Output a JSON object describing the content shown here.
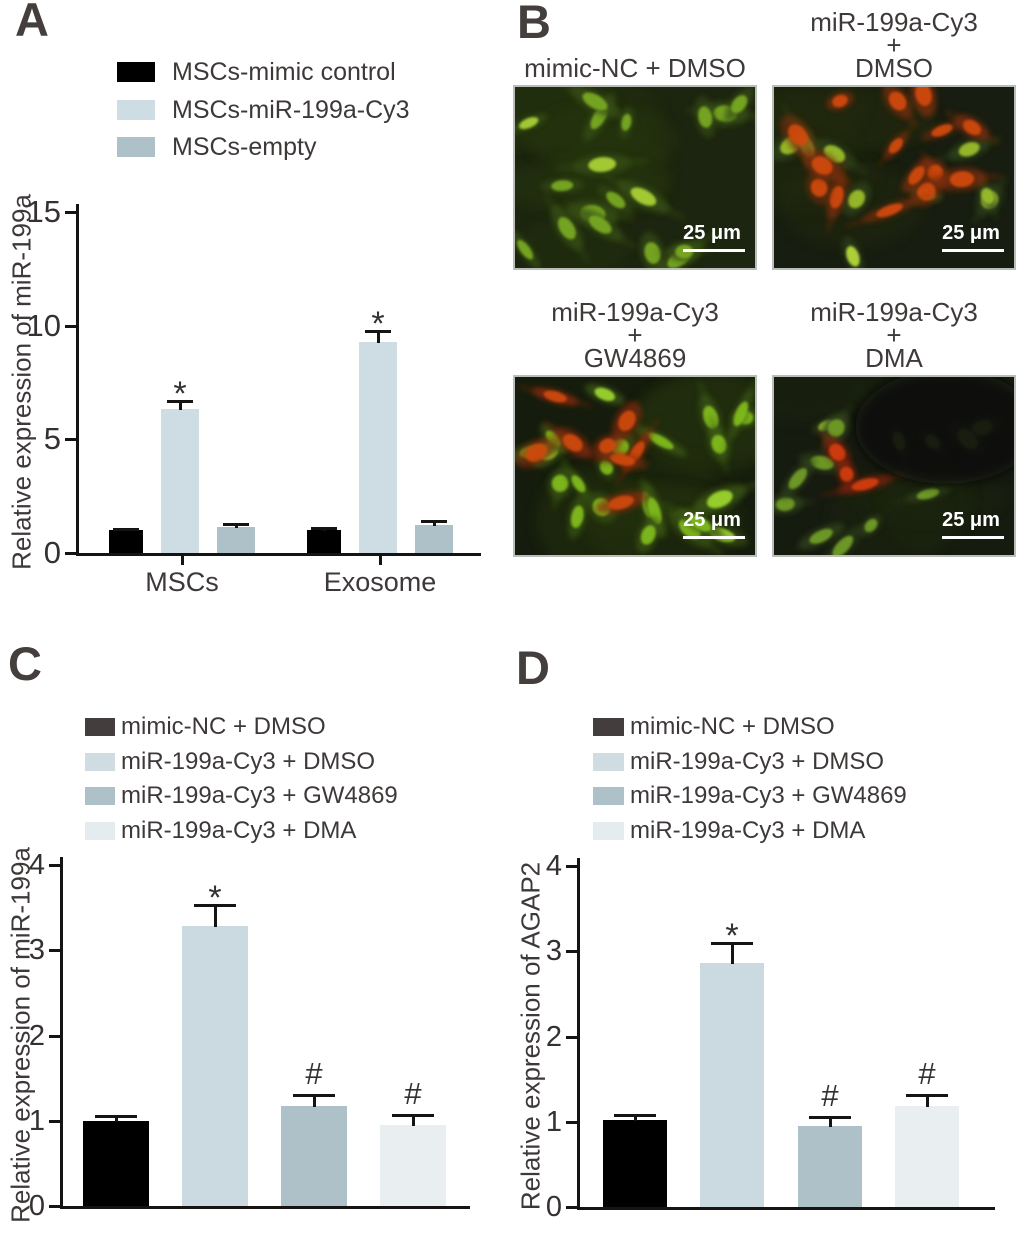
{
  "panels": {
    "A": {
      "letter": "A"
    },
    "B": {
      "letter": "B"
    },
    "C": {
      "letter": "C"
    },
    "D": {
      "letter": "D"
    }
  },
  "chart_data": [
    {
      "id": "A",
      "type": "bar",
      "title": "",
      "xlabel": "",
      "ylabel": "Relative expression of miR-199a",
      "ylim": [
        0,
        15
      ],
      "yticks": [
        0,
        5,
        10,
        15
      ],
      "grid": false,
      "legend_position": "top",
      "categories": [
        "MSCs",
        "Exosome"
      ],
      "legend": [
        {
          "label": "MSCs-mimic control",
          "color": "#000000"
        },
        {
          "label": "MSCs-miR-199a-Cy3",
          "color": "#cedce3"
        },
        {
          "label": "MSCs-empty",
          "color": "#aec1c9"
        }
      ],
      "series": [
        {
          "name": "MSCs-mimic control",
          "color": "#000000",
          "values": [
            1.0,
            1.0
          ],
          "errors": [
            0.05,
            0.08
          ],
          "marks": [
            "",
            ""
          ]
        },
        {
          "name": "MSCs-miR-199a-Cy3",
          "color": "#cedce3",
          "values": [
            6.35,
            9.3
          ],
          "errors": [
            0.35,
            0.45
          ],
          "marks": [
            "*",
            "*"
          ]
        },
        {
          "name": "MSCs-empty",
          "color": "#aec1c9",
          "values": [
            1.15,
            1.25
          ],
          "errors": [
            0.13,
            0.15
          ],
          "marks": [
            "",
            ""
          ]
        }
      ]
    },
    {
      "id": "C",
      "type": "bar",
      "title": "",
      "xlabel": "",
      "ylabel": "Relative expression of miR-199a",
      "ylim": [
        0,
        4
      ],
      "yticks": [
        0,
        1,
        2,
        3,
        4
      ],
      "grid": false,
      "legend_position": "top",
      "x_tick_labels_visible": false,
      "categories": [
        "mimic-NC + DMSO",
        "miR-199a-Cy3 + DMSO",
        "miR-199a-Cy3 + GW4869",
        "miR-199a-Cy3 + DMA"
      ],
      "values": [
        1.0,
        3.28,
        1.17,
        0.95
      ],
      "errors": [
        0.05,
        0.25,
        0.13,
        0.12
      ],
      "marks": [
        "",
        "*",
        "#",
        "#"
      ],
      "bar_colors": [
        "#000000",
        "#cbdae1",
        "#aec0c8",
        "#e9eef1"
      ],
      "legend": [
        {
          "label": "mimic-NC + DMSO",
          "color": "#433e3d"
        },
        {
          "label": "miR-199a-Cy3 + DMSO",
          "color": "#cfdde3"
        },
        {
          "label": "miR-199a-Cy3 + GW4869",
          "color": "#aec1c9"
        },
        {
          "label": "miR-199a-Cy3 + DMA",
          "color": "#e5ecef"
        }
      ]
    },
    {
      "id": "D",
      "type": "bar",
      "title": "",
      "xlabel": "",
      "ylabel": "Relative expression of AGAP2",
      "ylim": [
        0,
        4
      ],
      "yticks": [
        0,
        1,
        2,
        3,
        4
      ],
      "grid": false,
      "legend_position": "top",
      "x_tick_labels_visible": false,
      "categories": [
        "mimic-NC + DMSO",
        "miR-199a-Cy3 + DMSO",
        "miR-199a-Cy3 + GW4869",
        "miR-199a-Cy3 + DMA"
      ],
      "values": [
        1.02,
        2.86,
        0.95,
        1.18
      ],
      "errors": [
        0.06,
        0.24,
        0.1,
        0.13
      ],
      "marks": [
        "",
        "*",
        "#",
        "#"
      ],
      "bar_colors": [
        "#000000",
        "#cbdae1",
        "#aec0c8",
        "#e9eef1"
      ],
      "legend": [
        {
          "label": "mimic-NC + DMSO",
          "color": "#433e3d"
        },
        {
          "label": "miR-199a-Cy3 + DMSO",
          "color": "#cfdde3"
        },
        {
          "label": "miR-199a-Cy3 + GW4869",
          "color": "#aec1c9"
        },
        {
          "label": "miR-199a-Cy3 + DMA",
          "color": "#e5ecef"
        }
      ]
    }
  ],
  "panelB": {
    "images": [
      {
        "name": "mimic-NC + DMSO",
        "title_lines": [
          "mimic-NC + DMSO"
        ],
        "scale_label": "25 μm",
        "description": "fluorescence micrograph, green cells only",
        "bg": "#1c250f",
        "haze": "#28380f",
        "green_cells": 18,
        "red_cells": 0,
        "bright_cells": 3,
        "green_zone": [
          0.02,
          0.95,
          0.04,
          0.95
        ],
        "red_zone": [
          0,
          0,
          0,
          0
        ],
        "seed": 7
      },
      {
        "name": "miR-199a-Cy3 + DMSO",
        "title_lines": [
          "miR-199a-Cy3",
          "+",
          "DMSO"
        ],
        "scale_label": "25 μm",
        "description": "fluorescence micrograph, many red Cy3 cells with green cells",
        "bg": "#171d10",
        "haze": "#232c10",
        "green_cells": 9,
        "red_cells": 15,
        "bright_cells": 2,
        "green_zone": [
          0.05,
          0.95,
          0.3,
          0.98
        ],
        "red_zone": [
          0.02,
          0.85,
          0.02,
          0.7
        ],
        "seed": 19
      },
      {
        "name": "miR-199a-Cy3 + GW4869",
        "title_lines": [
          "miR-199a-Cy3",
          "+",
          "GW4869"
        ],
        "scale_label": "25 μm",
        "description": "fluorescence micrograph, dense green cells with red cells",
        "bg": "#151c0d",
        "haze": "#26360e",
        "green_cells": 22,
        "red_cells": 8,
        "bright_cells": 4,
        "green_zone": [
          0.02,
          0.97,
          0.03,
          0.97
        ],
        "red_zone": [
          0.03,
          0.62,
          0.05,
          0.8
        ],
        "seed": 33
      },
      {
        "name": "miR-199a-Cy3 + DMA",
        "title_lines": [
          "miR-199a-Cy3",
          "+",
          "DMA"
        ],
        "scale_label": "25 μm",
        "description": "fluorescence micrograph, sparse dim green cells, small red cluster",
        "bg": "#161b10",
        "haze": "#1d2610",
        "green_cells": 13,
        "red_cells": 3,
        "bright_cells": 1,
        "green_zone": [
          0.02,
          0.9,
          0.25,
          0.97
        ],
        "red_zone": [
          0.22,
          0.48,
          0.42,
          0.68
        ],
        "dark_zone": [
          0.72,
          0.28,
          0.38,
          0.32
        ],
        "seed": 47
      }
    ]
  }
}
